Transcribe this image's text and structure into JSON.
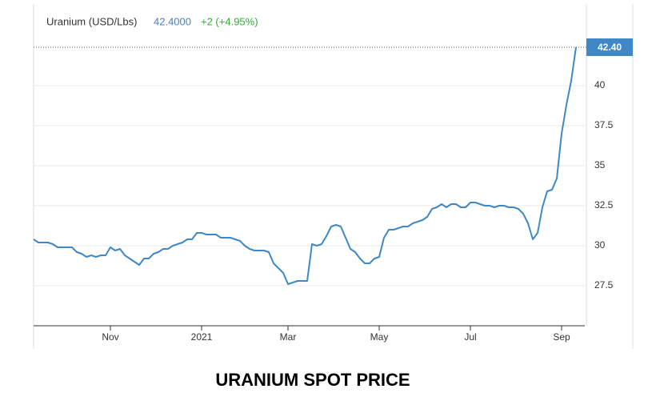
{
  "chart_data": {
    "type": "line",
    "title": "URANIUM SPOT PRICE",
    "series_label": "Uranium (USD/Lbs)",
    "price": "42.4000",
    "change": "+2 (+4.95%)",
    "last_label": "42.40",
    "color": "#3f88c5",
    "categories": [
      null,
      null,
      null,
      null,
      null,
      null,
      null,
      null,
      null,
      null,
      null,
      null,
      null,
      null,
      null,
      null,
      "Nov",
      null,
      null,
      null,
      null,
      null,
      null,
      null,
      null,
      null,
      null,
      null,
      null,
      null,
      null,
      null,
      null,
      null,
      null,
      "2021",
      null,
      null,
      null,
      null,
      null,
      null,
      null,
      null,
      null,
      null,
      null,
      null,
      null,
      null,
      null,
      null,
      null,
      "Mar",
      null,
      null,
      null,
      null,
      null,
      null,
      null,
      null,
      null,
      null,
      null,
      null,
      null,
      null,
      null,
      null,
      null,
      null,
      "May",
      null,
      null,
      null,
      null,
      null,
      null,
      null,
      null,
      null,
      null,
      null,
      null,
      null,
      null,
      null,
      null,
      null,
      null,
      "Jul",
      null,
      null,
      null,
      null,
      null,
      null,
      null,
      null,
      null,
      null,
      null,
      null,
      null,
      null,
      null,
      null,
      null,
      null,
      "Sep",
      null,
      null,
      null
    ],
    "values": [
      30.4,
      30.2,
      30.2,
      30.2,
      30.1,
      29.9,
      29.9,
      29.9,
      29.9,
      29.6,
      29.5,
      29.3,
      29.4,
      29.3,
      29.4,
      29.4,
      29.9,
      29.7,
      29.8,
      29.4,
      29.2,
      29.0,
      28.8,
      29.2,
      29.2,
      29.5,
      29.6,
      29.8,
      29.8,
      30.0,
      30.1,
      30.2,
      30.4,
      30.4,
      30.8,
      30.8,
      30.7,
      30.7,
      30.7,
      30.5,
      30.5,
      30.5,
      30.4,
      30.3,
      30.0,
      29.8,
      29.7,
      29.7,
      29.7,
      29.6,
      28.9,
      28.6,
      28.3,
      27.6,
      27.7,
      27.8,
      27.8,
      27.8,
      30.1,
      30.0,
      30.1,
      30.6,
      31.2,
      31.3,
      31.2,
      30.5,
      29.8,
      29.6,
      29.2,
      28.9,
      28.9,
      29.2,
      29.3,
      30.5,
      31.0,
      31.0,
      31.1,
      31.2,
      31.2,
      31.4,
      31.5,
      31.6,
      31.8,
      32.3,
      32.4,
      32.6,
      32.4,
      32.6,
      32.6,
      32.4,
      32.4,
      32.7,
      32.7,
      32.6,
      32.5,
      32.5,
      32.4,
      32.5,
      32.5,
      32.4,
      32.4,
      32.3,
      32.0,
      31.4,
      30.4,
      30.8,
      32.4,
      33.4,
      33.5,
      34.2,
      37.0,
      38.8,
      40.3,
      42.4
    ],
    "ylim": [
      25,
      45
    ],
    "yticks": [
      27.5,
      30,
      32.5,
      35,
      37.5,
      40
    ],
    "grid": true
  }
}
